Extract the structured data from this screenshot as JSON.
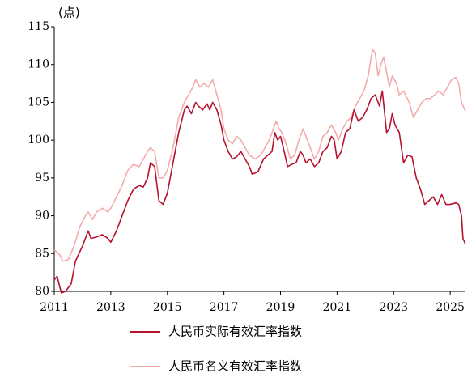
{
  "chart_data": {
    "type": "line",
    "unit_label": "(点)",
    "xlim": [
      2011,
      2025.54
    ],
    "xticks": [
      2011,
      2013,
      2015,
      2017,
      2019,
      2021,
      2023,
      2025
    ],
    "ylim": [
      80,
      115
    ],
    "yticks": [
      80,
      85,
      90,
      95,
      100,
      105,
      110,
      115
    ],
    "grid": false,
    "series": [
      {
        "name": "人民币实际有效汇率指数",
        "color": "#b5122e",
        "x": [
          2011.0,
          2011.1,
          2011.25,
          2011.4,
          2011.6,
          2011.75,
          2012.0,
          2012.2,
          2012.3,
          2012.5,
          2012.7,
          2012.9,
          2013.0,
          2013.2,
          2013.4,
          2013.6,
          2013.8,
          2014.0,
          2014.15,
          2014.3,
          2014.4,
          2014.55,
          2014.7,
          2014.85,
          2015.0,
          2015.2,
          2015.4,
          2015.6,
          2015.7,
          2015.85,
          2016.0,
          2016.1,
          2016.25,
          2016.4,
          2016.5,
          2016.6,
          2016.75,
          2016.9,
          2017.0,
          2017.15,
          2017.3,
          2017.45,
          2017.6,
          2017.75,
          2017.9,
          2018.0,
          2018.2,
          2018.4,
          2018.55,
          2018.7,
          2018.8,
          2018.9,
          2019.0,
          2019.1,
          2019.25,
          2019.4,
          2019.55,
          2019.7,
          2019.8,
          2019.9,
          2020.05,
          2020.2,
          2020.35,
          2020.5,
          2020.65,
          2020.8,
          2020.9,
          2021.0,
          2021.15,
          2021.3,
          2021.45,
          2021.6,
          2021.75,
          2021.9,
          2022.05,
          2022.2,
          2022.35,
          2022.5,
          2022.6,
          2022.75,
          2022.85,
          2022.95,
          2023.05,
          2023.2,
          2023.35,
          2023.5,
          2023.65,
          2023.8,
          2023.95,
          2024.1,
          2024.25,
          2024.4,
          2024.55,
          2024.7,
          2024.85,
          2025.0,
          2025.2,
          2025.3,
          2025.4,
          2025.45,
          2025.54
        ],
        "values": [
          81.5,
          82,
          79.8,
          80,
          81,
          84,
          86,
          88,
          87,
          87.2,
          87.5,
          87,
          86.5,
          88,
          90,
          92,
          93.5,
          94,
          93.8,
          95,
          97,
          96.5,
          92,
          91.5,
          93,
          97,
          101,
          104,
          104.5,
          103.5,
          105,
          104.5,
          104,
          104.8,
          104,
          105,
          104,
          102,
          100,
          98.5,
          97.5,
          97.8,
          98.5,
          97.5,
          96.5,
          95.5,
          95.8,
          97.5,
          98,
          98.5,
          101,
          100,
          100.5,
          99,
          96.5,
          96.8,
          97,
          98.5,
          98,
          97,
          97.5,
          96.5,
          97,
          98.5,
          99,
          100.5,
          100,
          97.5,
          98.5,
          101,
          101.5,
          104,
          102.5,
          103,
          104,
          105.5,
          106,
          104.5,
          106.5,
          101,
          101.5,
          103.5,
          102,
          101,
          97,
          98,
          97.8,
          95,
          93.5,
          91.5,
          92,
          92.5,
          91.5,
          92.8,
          91.5,
          91.5,
          91.7,
          91.5,
          90,
          87,
          86.2
        ]
      },
      {
        "name": "人民币名义有效汇率指数",
        "color": "#f4abab",
        "x": [
          2011.0,
          2011.2,
          2011.3,
          2011.5,
          2011.7,
          2011.9,
          2012.1,
          2012.2,
          2012.35,
          2012.5,
          2012.7,
          2012.9,
          2013.0,
          2013.2,
          2013.4,
          2013.6,
          2013.8,
          2014.0,
          2014.15,
          2014.3,
          2014.4,
          2014.55,
          2014.7,
          2014.85,
          2015.0,
          2015.2,
          2015.4,
          2015.6,
          2015.75,
          2015.9,
          2016.0,
          2016.15,
          2016.3,
          2016.45,
          2016.6,
          2016.75,
          2016.9,
          2017.0,
          2017.15,
          2017.3,
          2017.45,
          2017.6,
          2017.75,
          2017.9,
          2018.1,
          2018.3,
          2018.45,
          2018.6,
          2018.75,
          2018.85,
          2018.95,
          2019.05,
          2019.2,
          2019.35,
          2019.5,
          2019.65,
          2019.8,
          2019.9,
          2020.05,
          2020.2,
          2020.35,
          2020.5,
          2020.65,
          2020.8,
          2020.95,
          2021.05,
          2021.2,
          2021.35,
          2021.5,
          2021.65,
          2021.8,
          2021.95,
          2022.1,
          2022.25,
          2022.35,
          2022.45,
          2022.55,
          2022.65,
          2022.75,
          2022.85,
          2022.95,
          2023.1,
          2023.2,
          2023.35,
          2023.55,
          2023.7,
          2023.85,
          2024.0,
          2024.15,
          2024.3,
          2024.45,
          2024.6,
          2024.75,
          2024.9,
          2025.05,
          2025.2,
          2025.3,
          2025.4,
          2025.54
        ],
        "values": [
          85.5,
          84.8,
          84,
          84.2,
          86,
          88.5,
          90,
          90.5,
          89.5,
          90.5,
          91,
          90.5,
          91,
          92.5,
          94,
          96,
          96.8,
          96.5,
          97.5,
          98.5,
          99,
          98.5,
          95,
          95,
          96,
          99,
          103,
          105,
          106,
          107,
          108,
          107,
          107.5,
          107,
          108,
          106,
          104,
          101.5,
          100,
          99.5,
          100.5,
          100,
          99,
          98,
          97.5,
          98,
          99,
          100,
          101.5,
          102.5,
          101.5,
          101,
          99.5,
          97.5,
          98,
          100,
          101.5,
          100.5,
          99,
          97.5,
          98.5,
          100.5,
          101,
          102,
          101,
          100,
          101.5,
          102.5,
          103,
          104.5,
          105.5,
          106.5,
          108.5,
          112,
          111.5,
          108.5,
          110,
          111,
          109,
          107,
          108.5,
          107.5,
          106,
          106.5,
          105,
          103,
          104,
          105,
          105.5,
          105.5,
          106,
          106.5,
          106,
          107,
          108,
          108.3,
          107.5,
          105,
          103.8
        ]
      }
    ]
  }
}
